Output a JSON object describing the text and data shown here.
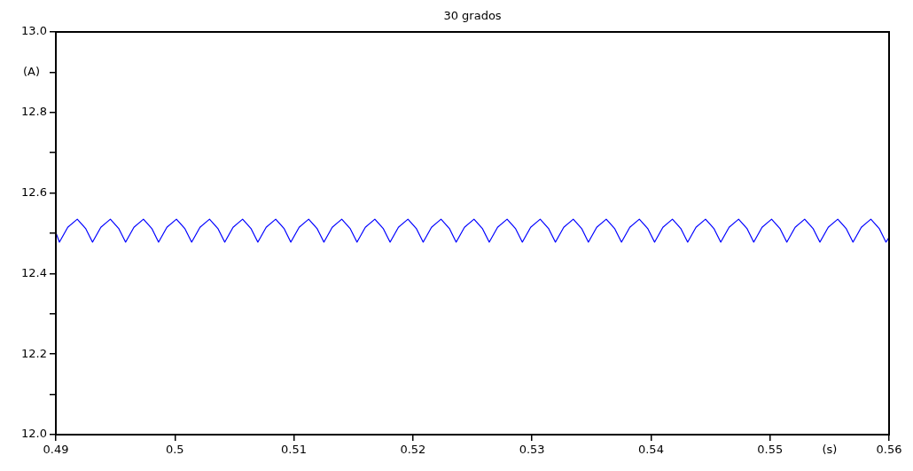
{
  "chart_data": {
    "type": "line",
    "title": "30 grados",
    "xlabel": "(s)",
    "ylabel": "(A)",
    "xlim": [
      0.49,
      0.56
    ],
    "xticks": [
      0.49,
      0.5,
      0.51,
      0.52,
      0.53,
      0.54,
      0.55,
      0.56
    ],
    "ylim": [
      12,
      13
    ],
    "yticks": [
      {
        "value": 12,
        "label": "12.0"
      },
      {
        "value": 12.1,
        "label": null
      },
      12.2,
      {
        "value": 12.3,
        "label": null
      },
      12.4,
      {
        "value": 12.5,
        "label": null
      },
      12.6,
      {
        "value": 12.7,
        "label": null
      },
      12.8,
      {
        "value": 12.9,
        "label": null
      },
      {
        "value": 13,
        "label": "13.0"
      }
    ],
    "grid": false,
    "legend": false,
    "marker": "none",
    "line_style": "solid",
    "series": [
      {
        "color": "#0000ff",
        "x": [
          0.49,
          0.4903,
          0.491,
          0.4918,
          0.4925,
          0.49308,
          0.49378,
          0.49458,
          0.49528,
          0.49586,
          0.49656,
          0.49736,
          0.49806,
          0.49863,
          0.49933,
          0.50013,
          0.50083,
          0.50141,
          0.50211,
          0.50291,
          0.50361,
          0.50419,
          0.50489,
          0.50569,
          0.50639,
          0.50697,
          0.50767,
          0.50847,
          0.50917,
          0.50974,
          0.51044,
          0.51124,
          0.51194,
          0.51252,
          0.51322,
          0.51402,
          0.51472,
          0.5153,
          0.516,
          0.5168,
          0.5175,
          0.51808,
          0.51878,
          0.51958,
          0.52028,
          0.52086,
          0.52156,
          0.52236,
          0.52306,
          0.52363,
          0.52433,
          0.52513,
          0.52583,
          0.52641,
          0.52711,
          0.52791,
          0.52861,
          0.52919,
          0.52989,
          0.53069,
          0.53139,
          0.53197,
          0.53267,
          0.53347,
          0.53417,
          0.53474,
          0.53544,
          0.53624,
          0.53694,
          0.53752,
          0.53822,
          0.53902,
          0.53972,
          0.5403,
          0.541,
          0.5418,
          0.5425,
          0.54308,
          0.54378,
          0.54458,
          0.54528,
          0.54586,
          0.54656,
          0.54736,
          0.54806,
          0.54863,
          0.54933,
          0.55013,
          0.55083,
          0.55141,
          0.55211,
          0.55291,
          0.55361,
          0.55419,
          0.55489,
          0.55569,
          0.55639,
          0.55697,
          0.55767,
          0.55847,
          0.55917,
          0.55974,
          0.56
        ],
        "values": [
          12.502,
          12.478,
          12.515,
          12.535,
          12.512,
          12.478,
          12.515,
          12.535,
          12.512,
          12.478,
          12.515,
          12.535,
          12.512,
          12.478,
          12.515,
          12.535,
          12.512,
          12.478,
          12.515,
          12.535,
          12.512,
          12.478,
          12.515,
          12.535,
          12.512,
          12.478,
          12.515,
          12.535,
          12.512,
          12.478,
          12.515,
          12.535,
          12.512,
          12.478,
          12.515,
          12.535,
          12.512,
          12.478,
          12.515,
          12.535,
          12.512,
          12.478,
          12.515,
          12.535,
          12.512,
          12.478,
          12.515,
          12.535,
          12.512,
          12.478,
          12.515,
          12.535,
          12.512,
          12.478,
          12.515,
          12.535,
          12.512,
          12.478,
          12.515,
          12.535,
          12.512,
          12.478,
          12.515,
          12.535,
          12.512,
          12.478,
          12.515,
          12.535,
          12.512,
          12.478,
          12.515,
          12.535,
          12.512,
          12.478,
          12.515,
          12.535,
          12.512,
          12.478,
          12.515,
          12.535,
          12.512,
          12.478,
          12.515,
          12.535,
          12.512,
          12.478,
          12.515,
          12.535,
          12.512,
          12.478,
          12.515,
          12.535,
          12.512,
          12.478,
          12.515,
          12.535,
          12.512,
          12.478,
          12.515,
          12.535,
          12.512,
          12.478,
          12.49
        ]
      }
    ]
  }
}
